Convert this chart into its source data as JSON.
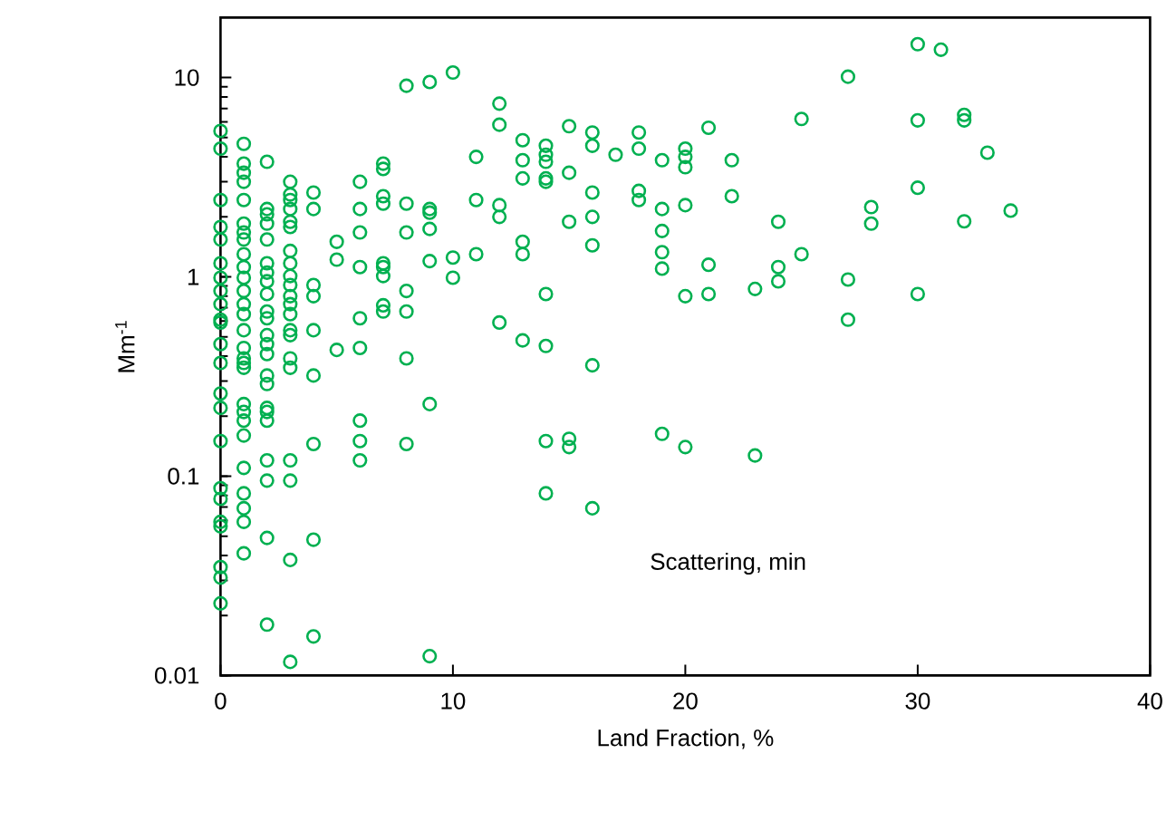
{
  "chart_data": {
    "type": "scatter",
    "xlabel": "Land Fraction, %",
    "ylabel": "Mm$^{-1}$",
    "annotations": [
      "Scattering, min"
    ],
    "x": [
      0,
      0,
      0,
      0,
      0,
      0,
      0,
      0,
      0,
      0,
      0,
      0,
      0,
      0,
      0,
      0,
      0,
      0,
      0,
      0,
      0,
      0,
      0,
      1,
      1,
      1,
      1,
      1,
      1,
      1,
      1,
      1,
      1,
      1,
      1,
      1,
      1,
      1,
      1,
      1,
      1,
      1,
      1,
      1,
      1,
      1,
      1,
      1,
      1,
      1,
      1,
      2,
      2,
      2,
      2,
      2,
      2,
      2,
      2,
      2,
      2,
      2,
      2,
      2,
      2,
      2,
      2,
      2,
      2,
      2,
      2,
      2,
      2,
      2,
      3,
      3,
      3,
      3,
      3,
      3,
      3,
      3,
      3,
      3,
      3,
      3,
      3,
      3,
      3,
      3,
      3,
      3,
      3,
      3,
      3,
      4,
      4,
      4,
      4,
      4,
      4,
      4,
      4,
      4,
      5,
      5,
      5,
      6,
      6,
      6,
      6,
      6,
      6,
      6,
      6,
      6,
      7,
      7,
      7,
      7,
      7,
      7,
      7,
      7,
      7,
      8,
      8,
      8,
      8,
      8,
      8,
      8,
      9,
      9,
      9,
      9,
      9,
      9,
      9,
      10,
      10,
      10,
      11,
      11,
      11,
      12,
      12,
      12,
      12,
      12,
      13,
      13,
      13,
      13,
      13,
      13,
      14,
      14,
      14,
      14,
      14,
      14,
      14,
      14,
      14,
      15,
      15,
      15,
      15,
      15,
      16,
      16,
      16,
      16,
      16,
      16,
      16,
      17,
      18,
      18,
      18,
      18,
      19,
      19,
      19,
      19,
      19,
      19,
      20,
      20,
      20,
      20,
      20,
      20,
      21,
      21,
      21,
      22,
      22,
      23,
      23,
      24,
      24,
      24,
      25,
      25,
      27,
      27,
      27,
      28,
      28,
      30,
      30,
      30,
      30,
      31,
      32,
      32,
      32,
      33,
      34
    ],
    "values": [
      5.4,
      4.4,
      2.43,
      1.78,
      1.54,
      1.17,
      0.99,
      0.85,
      0.73,
      0.61,
      0.59,
      0.46,
      0.37,
      0.26,
      0.22,
      0.15,
      0.087,
      0.077,
      0.059,
      0.056,
      0.035,
      0.031,
      0.023,
      4.65,
      3.7,
      3.33,
      3.0,
      2.43,
      1.85,
      1.67,
      1.54,
      1.3,
      1.12,
      0.99,
      0.85,
      0.73,
      0.65,
      0.54,
      0.44,
      0.39,
      0.37,
      0.35,
      0.23,
      0.21,
      0.19,
      0.16,
      0.11,
      0.082,
      0.069,
      0.059,
      0.041,
      3.78,
      2.19,
      2.06,
      1.85,
      1.54,
      1.17,
      1.05,
      0.95,
      0.82,
      0.67,
      0.62,
      0.51,
      0.46,
      0.41,
      0.32,
      0.29,
      0.22,
      0.21,
      0.19,
      0.12,
      0.095,
      0.049,
      0.018,
      3.0,
      2.59,
      2.43,
      2.19,
      1.89,
      1.78,
      1.35,
      1.17,
      1.01,
      0.91,
      0.8,
      0.73,
      0.65,
      0.54,
      0.51,
      0.39,
      0.35,
      0.12,
      0.095,
      0.038,
      0.0117,
      2.65,
      2.19,
      0.91,
      0.8,
      0.54,
      0.32,
      0.145,
      0.048,
      0.0157,
      1.5,
      1.22,
      0.43,
      3.0,
      2.19,
      1.67,
      1.12,
      0.62,
      0.44,
      0.19,
      0.15,
      0.12,
      3.7,
      3.48,
      2.54,
      2.33,
      1.17,
      1.12,
      1.01,
      0.72,
      0.67,
      9.1,
      2.33,
      1.67,
      0.85,
      0.67,
      0.39,
      0.145,
      9.5,
      2.19,
      2.1,
      1.74,
      1.2,
      0.23,
      0.0125,
      10.6,
      1.25,
      0.99,
      4.0,
      2.43,
      1.3,
      7.4,
      5.8,
      2.29,
      2.0,
      0.59,
      4.85,
      3.85,
      3.12,
      1.5,
      1.3,
      0.48,
      4.55,
      4.1,
      3.78,
      3.12,
      3.0,
      0.82,
      0.45,
      0.15,
      0.082,
      5.7,
      3.33,
      1.89,
      0.154,
      0.14,
      5.3,
      4.55,
      2.65,
      2.0,
      1.44,
      0.36,
      0.069,
      4.1,
      5.3,
      4.4,
      2.7,
      2.43,
      3.85,
      2.19,
      1.7,
      1.33,
      1.1,
      0.163,
      4.4,
      4.0,
      3.55,
      2.29,
      0.8,
      0.14,
      5.6,
      1.15,
      0.82,
      3.85,
      2.54,
      0.87,
      0.127,
      1.89,
      1.12,
      0.95,
      6.2,
      1.3,
      10.1,
      0.97,
      0.61,
      2.24,
      1.85,
      14.7,
      6.1,
      2.8,
      0.82,
      13.8,
      6.5,
      6.1,
      1.9,
      4.2,
      2.15
    ],
    "color": "#00b050",
    "marker": "circle",
    "log": "y",
    "xlim": [
      0,
      40
    ],
    "ylim": [
      0.01,
      20
    ],
    "xticks": [
      0,
      10,
      20,
      30,
      40
    ],
    "yticks": [
      0.01,
      0.1,
      1,
      10
    ]
  }
}
